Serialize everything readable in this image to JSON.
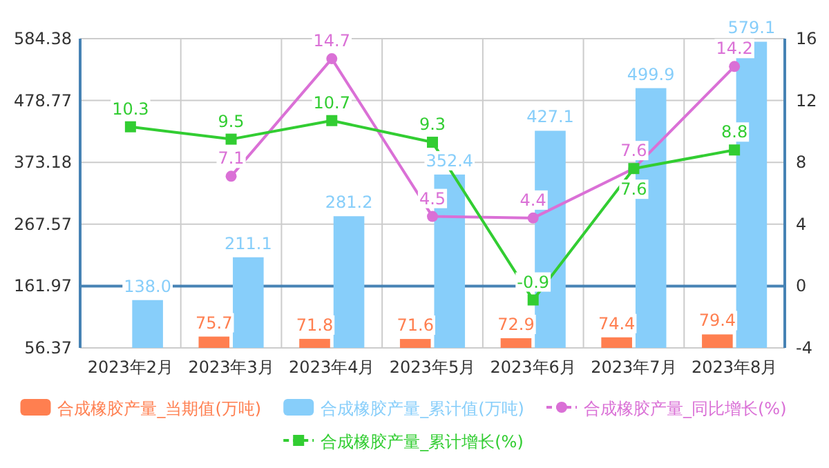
{
  "chart_data": {
    "type": "bar",
    "categories": [
      "2023年2月",
      "2023年3月",
      "2023年4月",
      "2023年5月",
      "2023年6月",
      "2023年7月",
      "2023年8月"
    ],
    "series": [
      {
        "name": "合成橡胶产量_当期值(万吨)",
        "color": "#ff7f50",
        "values": [
          null,
          75.7,
          71.8,
          71.6,
          72.9,
          74.4,
          79.4
        ],
        "value_labels": [
          null,
          "75.7",
          "71.8",
          "71.6",
          "72.9",
          "74.4",
          "79.4"
        ]
      },
      {
        "name": "合成橡胶产量_累计值(万吨)",
        "color": "#87cefa",
        "values": [
          138.0,
          211.1,
          281.2,
          352.4,
          427.1,
          499.9,
          579.1
        ],
        "value_labels": [
          "138.0",
          "211.1",
          "281.2",
          "352.4",
          "427.1",
          "499.9",
          "579.1"
        ]
      },
      {
        "name": "合成橡胶产量_同比增长(%)",
        "color": "#da70d6",
        "type": "line",
        "axis": "y2",
        "marker": "circle",
        "values": [
          null,
          7.1,
          14.7,
          4.5,
          4.4,
          7.6,
          14.2
        ],
        "value_labels": [
          null,
          "7.1",
          "14.7",
          "4.5",
          "4.4",
          "7.6",
          "14.2"
        ]
      },
      {
        "name": "合成橡胶产量_累计增长(%)",
        "color": "#32cd32",
        "type": "line",
        "axis": "y2",
        "marker": "square",
        "values": [
          10.3,
          9.5,
          10.7,
          9.3,
          -0.9,
          7.6,
          8.8
        ],
        "value_labels": [
          "10.3",
          "9.5",
          "10.7",
          "9.3",
          "-0.9",
          "7.6",
          "8.8"
        ]
      }
    ],
    "ylim": [
      56.37,
      584.38
    ],
    "yticks": [
      56.37,
      161.97,
      267.57,
      373.18,
      478.77,
      584.38
    ],
    "y2lim": [
      -4,
      16
    ],
    "y2ticks": [
      -4,
      0,
      4,
      8,
      12,
      16
    ],
    "ref_lines": [
      {
        "axis": "y2",
        "value": 0,
        "color": "#4682b4"
      }
    ],
    "grid": true,
    "legend": "bottom"
  }
}
